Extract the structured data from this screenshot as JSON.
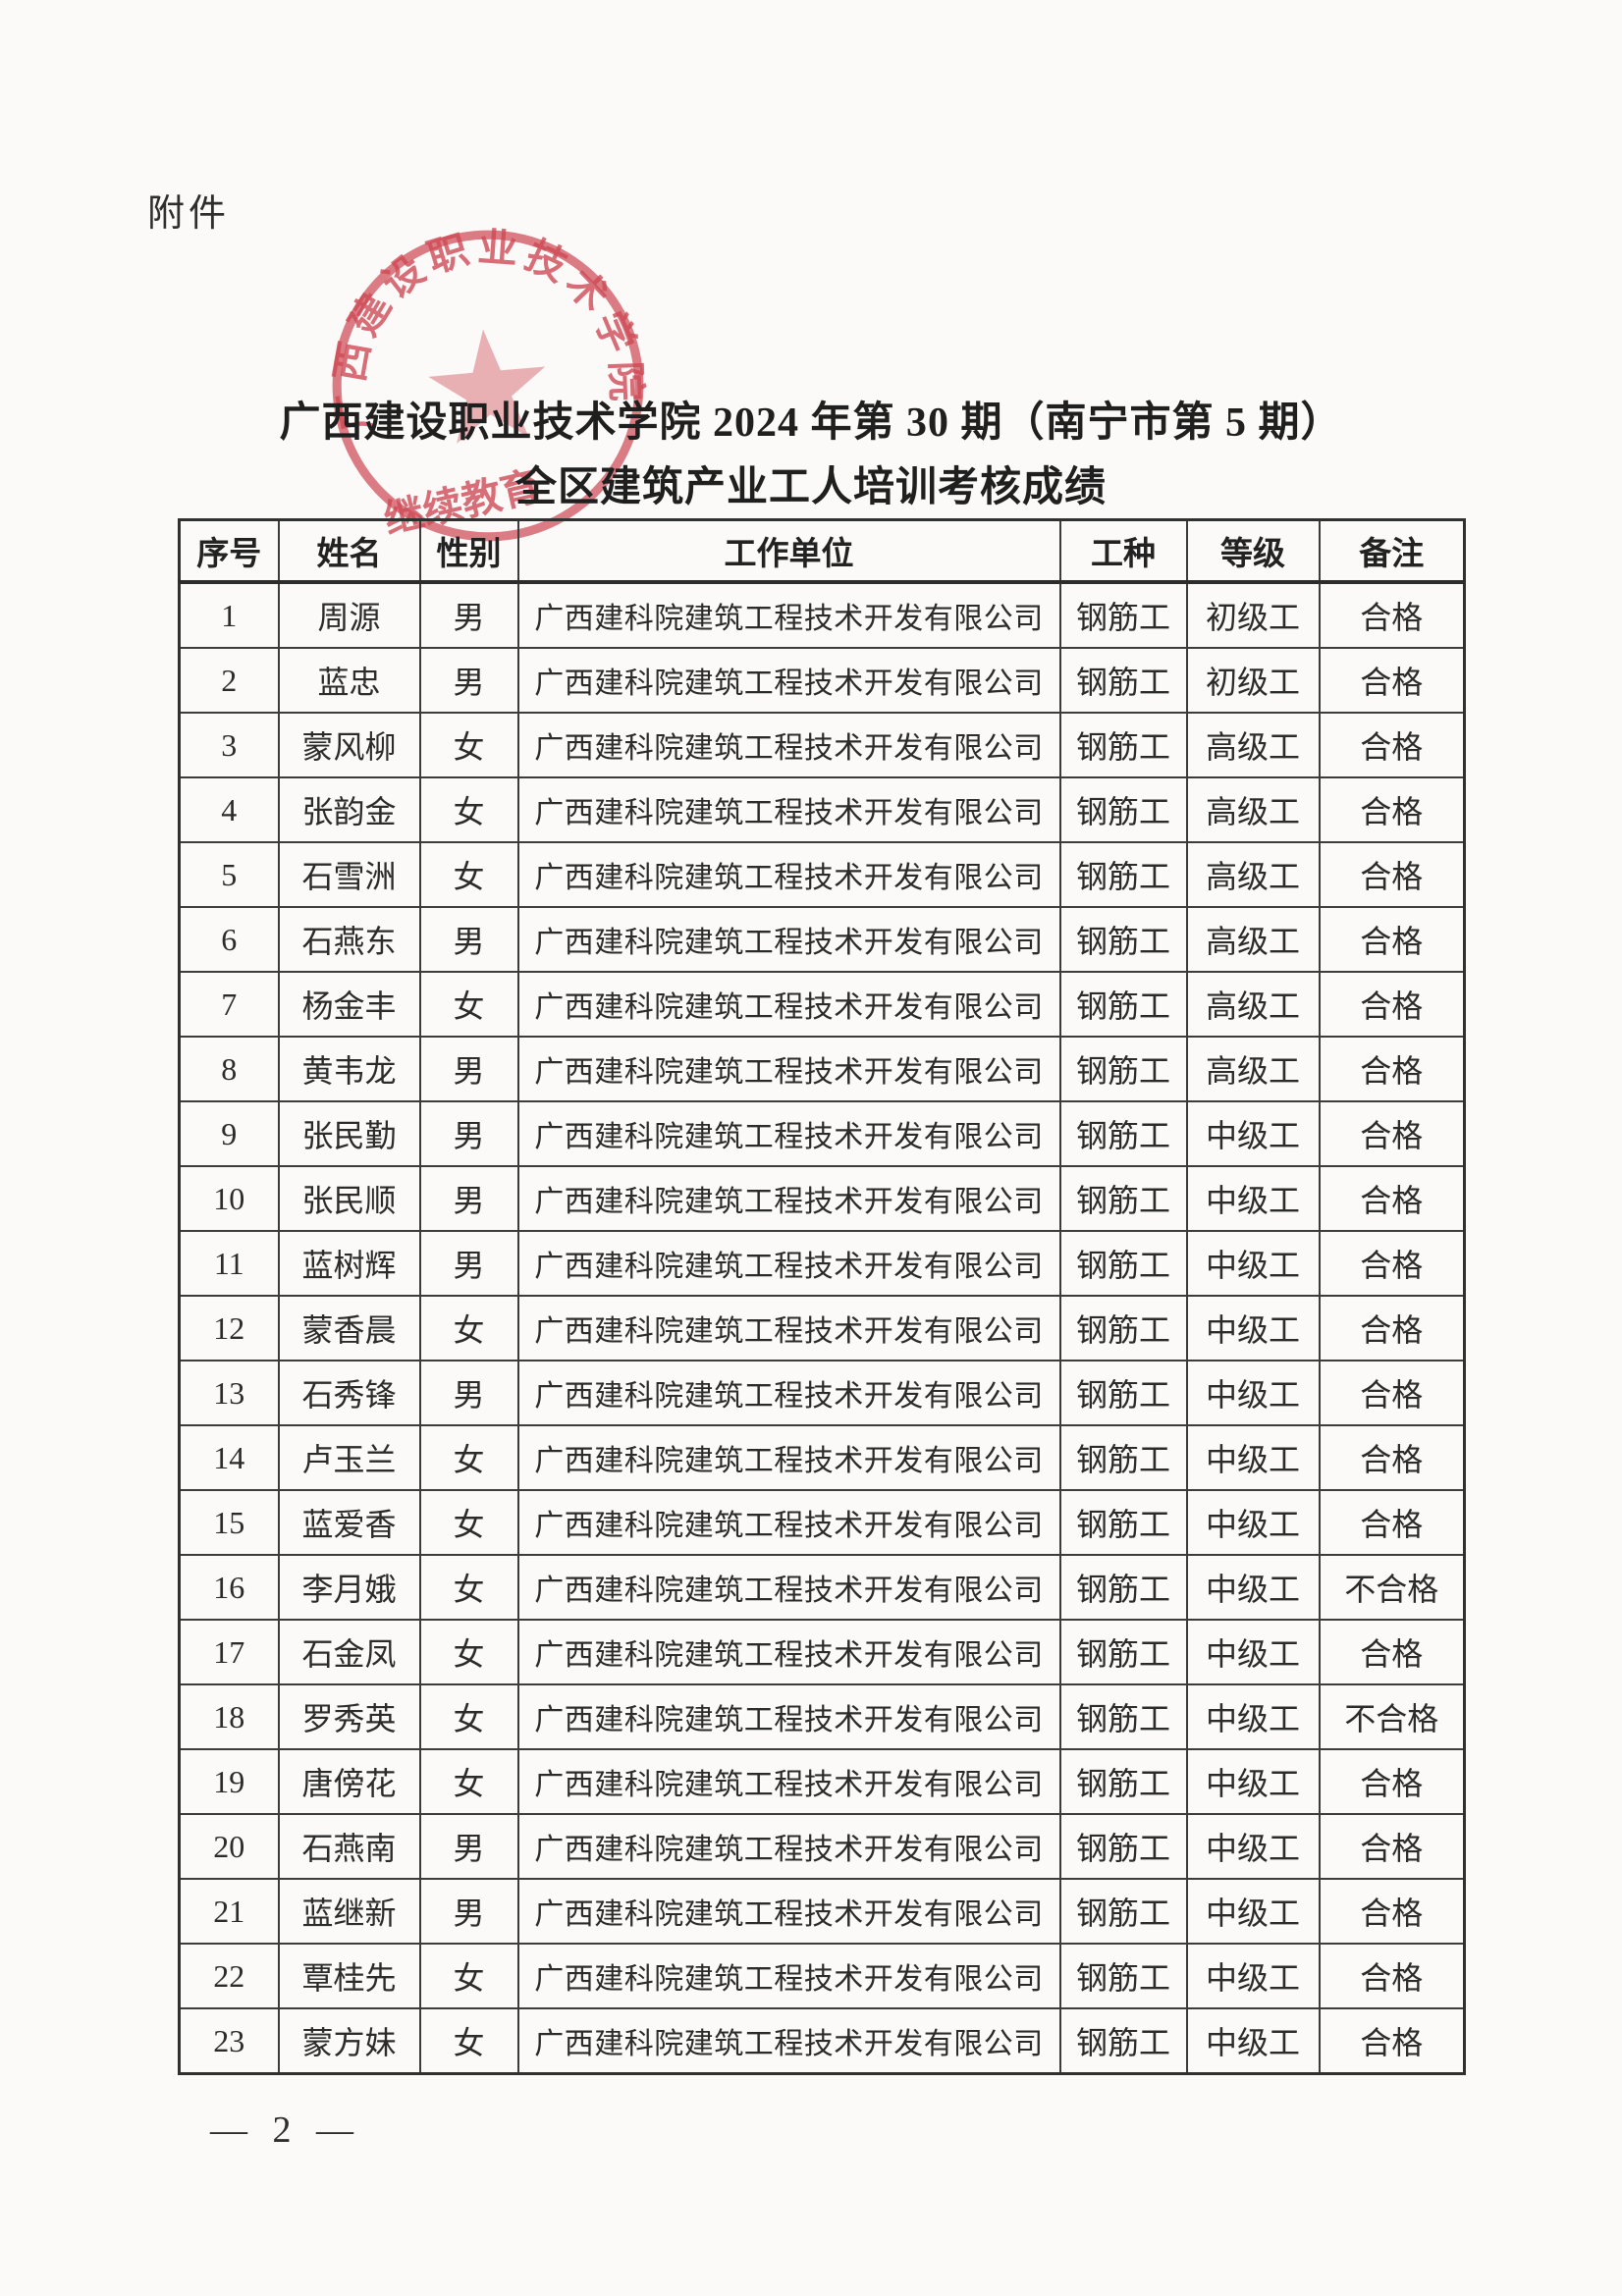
{
  "page": {
    "attachment_label": "附件",
    "title_line1": "广西建设职业技术学院 2024 年第 30 期（南宁市第 5 期）",
    "title_line2": "全区建筑产业工人培训考核成绩",
    "page_number": "— 2 —"
  },
  "stamp": {
    "ring_text": "广西建设职业技术学院",
    "bottom_text": "继续教育",
    "color": "#cf4a56"
  },
  "table": {
    "headers": [
      "序号",
      "姓名",
      "性别",
      "工作单位",
      "工种",
      "等级",
      "备注"
    ],
    "rows": [
      [
        "1",
        "周源",
        "男",
        "广西建科院建筑工程技术开发有限公司",
        "钢筋工",
        "初级工",
        "合格"
      ],
      [
        "2",
        "蓝忠",
        "男",
        "广西建科院建筑工程技术开发有限公司",
        "钢筋工",
        "初级工",
        "合格"
      ],
      [
        "3",
        "蒙风柳",
        "女",
        "广西建科院建筑工程技术开发有限公司",
        "钢筋工",
        "高级工",
        "合格"
      ],
      [
        "4",
        "张韵金",
        "女",
        "广西建科院建筑工程技术开发有限公司",
        "钢筋工",
        "高级工",
        "合格"
      ],
      [
        "5",
        "石雪洲",
        "女",
        "广西建科院建筑工程技术开发有限公司",
        "钢筋工",
        "高级工",
        "合格"
      ],
      [
        "6",
        "石燕东",
        "男",
        "广西建科院建筑工程技术开发有限公司",
        "钢筋工",
        "高级工",
        "合格"
      ],
      [
        "7",
        "杨金丰",
        "女",
        "广西建科院建筑工程技术开发有限公司",
        "钢筋工",
        "高级工",
        "合格"
      ],
      [
        "8",
        "黄韦龙",
        "男",
        "广西建科院建筑工程技术开发有限公司",
        "钢筋工",
        "高级工",
        "合格"
      ],
      [
        "9",
        "张民勤",
        "男",
        "广西建科院建筑工程技术开发有限公司",
        "钢筋工",
        "中级工",
        "合格"
      ],
      [
        "10",
        "张民顺",
        "男",
        "广西建科院建筑工程技术开发有限公司",
        "钢筋工",
        "中级工",
        "合格"
      ],
      [
        "11",
        "蓝树辉",
        "男",
        "广西建科院建筑工程技术开发有限公司",
        "钢筋工",
        "中级工",
        "合格"
      ],
      [
        "12",
        "蒙香晨",
        "女",
        "广西建科院建筑工程技术开发有限公司",
        "钢筋工",
        "中级工",
        "合格"
      ],
      [
        "13",
        "石秀锋",
        "男",
        "广西建科院建筑工程技术开发有限公司",
        "钢筋工",
        "中级工",
        "合格"
      ],
      [
        "14",
        "卢玉兰",
        "女",
        "广西建科院建筑工程技术开发有限公司",
        "钢筋工",
        "中级工",
        "合格"
      ],
      [
        "15",
        "蓝爱香",
        "女",
        "广西建科院建筑工程技术开发有限公司",
        "钢筋工",
        "中级工",
        "合格"
      ],
      [
        "16",
        "李月娥",
        "女",
        "广西建科院建筑工程技术开发有限公司",
        "钢筋工",
        "中级工",
        "不合格"
      ],
      [
        "17",
        "石金凤",
        "女",
        "广西建科院建筑工程技术开发有限公司",
        "钢筋工",
        "中级工",
        "合格"
      ],
      [
        "18",
        "罗秀英",
        "女",
        "广西建科院建筑工程技术开发有限公司",
        "钢筋工",
        "中级工",
        "不合格"
      ],
      [
        "19",
        "唐傍花",
        "女",
        "广西建科院建筑工程技术开发有限公司",
        "钢筋工",
        "中级工",
        "合格"
      ],
      [
        "20",
        "石燕南",
        "男",
        "广西建科院建筑工程技术开发有限公司",
        "钢筋工",
        "中级工",
        "合格"
      ],
      [
        "21",
        "蓝继新",
        "男",
        "广西建科院建筑工程技术开发有限公司",
        "钢筋工",
        "中级工",
        "合格"
      ],
      [
        "22",
        "覃桂先",
        "女",
        "广西建科院建筑工程技术开发有限公司",
        "钢筋工",
        "中级工",
        "合格"
      ],
      [
        "23",
        "蒙方妹",
        "女",
        "广西建科院建筑工程技术开发有限公司",
        "钢筋工",
        "中级工",
        "合格"
      ]
    ]
  }
}
